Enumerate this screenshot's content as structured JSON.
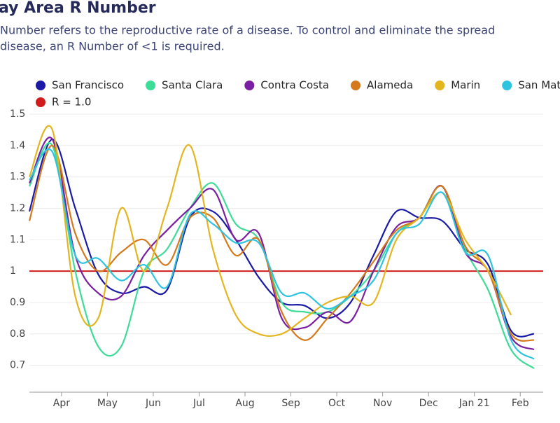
{
  "chart_data": {
    "type": "line",
    "title": "ay Area R Number",
    "subtitle": [
      "Number refers to the reproductive rate of a disease. To control and eliminate the spread",
      "disease, an R Number of <1 is required."
    ],
    "x": [
      -0.7,
      -0.2,
      0.3,
      0.8,
      1.3,
      1.8,
      2.3,
      2.8,
      3.3,
      3.8,
      4.3,
      4.8,
      5.3,
      5.8,
      6.3,
      6.8,
      7.3,
      7.8,
      8.3,
      8.8,
      9.3,
      9.8,
      10.3
    ],
    "xlim": [
      -0.7,
      10.5
    ],
    "xticks": [
      {
        "value": 0,
        "label": "Apr"
      },
      {
        "value": 1,
        "label": "May"
      },
      {
        "value": 2,
        "label": "Jun"
      },
      {
        "value": 3,
        "label": "Jul"
      },
      {
        "value": 4,
        "label": "Aug"
      },
      {
        "value": 5,
        "label": "Sep"
      },
      {
        "value": 6,
        "label": "Oct"
      },
      {
        "value": 7,
        "label": "Nov"
      },
      {
        "value": 8,
        "label": "Dec"
      },
      {
        "value": 9,
        "label": "Jan 21"
      },
      {
        "value": 10,
        "label": "Feb"
      }
    ],
    "ylim": [
      0.65,
      1.52
    ],
    "yticks": [
      0.7,
      0.8,
      0.9,
      1,
      1.1,
      1.2,
      1.3,
      1.4,
      1.5
    ],
    "grid": true,
    "series": [
      {
        "name": "San Francisco",
        "color": "#1a1aa6",
        "values": [
          1.19,
          1.42,
          1.2,
          0.99,
          0.93,
          0.95,
          0.94,
          1.17,
          1.19,
          1.1,
          0.98,
          0.9,
          0.89,
          0.85,
          0.9,
          1.05,
          1.19,
          1.17,
          1.16,
          1.07,
          1.02,
          0.81,
          0.8
        ]
      },
      {
        "name": "Santa Clara",
        "color": "#3ddc97",
        "values": [
          1.27,
          1.4,
          1.0,
          0.76,
          0.76,
          1.0,
          1.07,
          1.2,
          1.28,
          1.15,
          1.1,
          0.9,
          0.87,
          0.87,
          0.92,
          1.0,
          1.12,
          1.17,
          1.27,
          1.07,
          0.94,
          0.75,
          0.69
        ]
      },
      {
        "name": "Contra Costa",
        "color": "#7b1fa2",
        "values": [
          1.28,
          1.42,
          1.05,
          0.93,
          0.92,
          1.05,
          1.13,
          1.2,
          1.26,
          1.1,
          1.12,
          0.85,
          0.82,
          0.87,
          0.84,
          1.0,
          1.14,
          1.17,
          1.27,
          1.06,
          1.0,
          0.79,
          0.75
        ]
      },
      {
        "name": "Alameda",
        "color": "#d4791c",
        "values": [
          1.16,
          1.4,
          1.12,
          1.0,
          1.06,
          1.1,
          1.02,
          1.17,
          1.17,
          1.05,
          1.1,
          0.87,
          0.78,
          0.85,
          0.93,
          1.03,
          1.13,
          1.17,
          1.27,
          1.08,
          1.0,
          0.8,
          0.78
        ]
      },
      {
        "name": "Marin",
        "color": "#e3b51e",
        "values": [
          1.3,
          1.45,
          0.92,
          0.85,
          1.2,
          1.0,
          1.2,
          1.4,
          1.07,
          0.86,
          0.8,
          0.8,
          0.85,
          0.9,
          0.92,
          0.9,
          1.1,
          1.17,
          1.25,
          1.1,
          1.0,
          0.86,
          null
        ]
      },
      {
        "name": "San Mateo",
        "color": "#2ec4e0",
        "values": [
          1.29,
          1.38,
          1.05,
          1.04,
          0.97,
          1.02,
          0.95,
          1.18,
          1.15,
          1.09,
          1.09,
          0.93,
          0.93,
          0.88,
          0.92,
          0.97,
          1.12,
          1.15,
          1.25,
          1.06,
          1.05,
          0.78,
          0.72
        ]
      }
    ],
    "reference": {
      "name": "R = 1.0",
      "color": "#d01c1c",
      "value": 1
    }
  }
}
